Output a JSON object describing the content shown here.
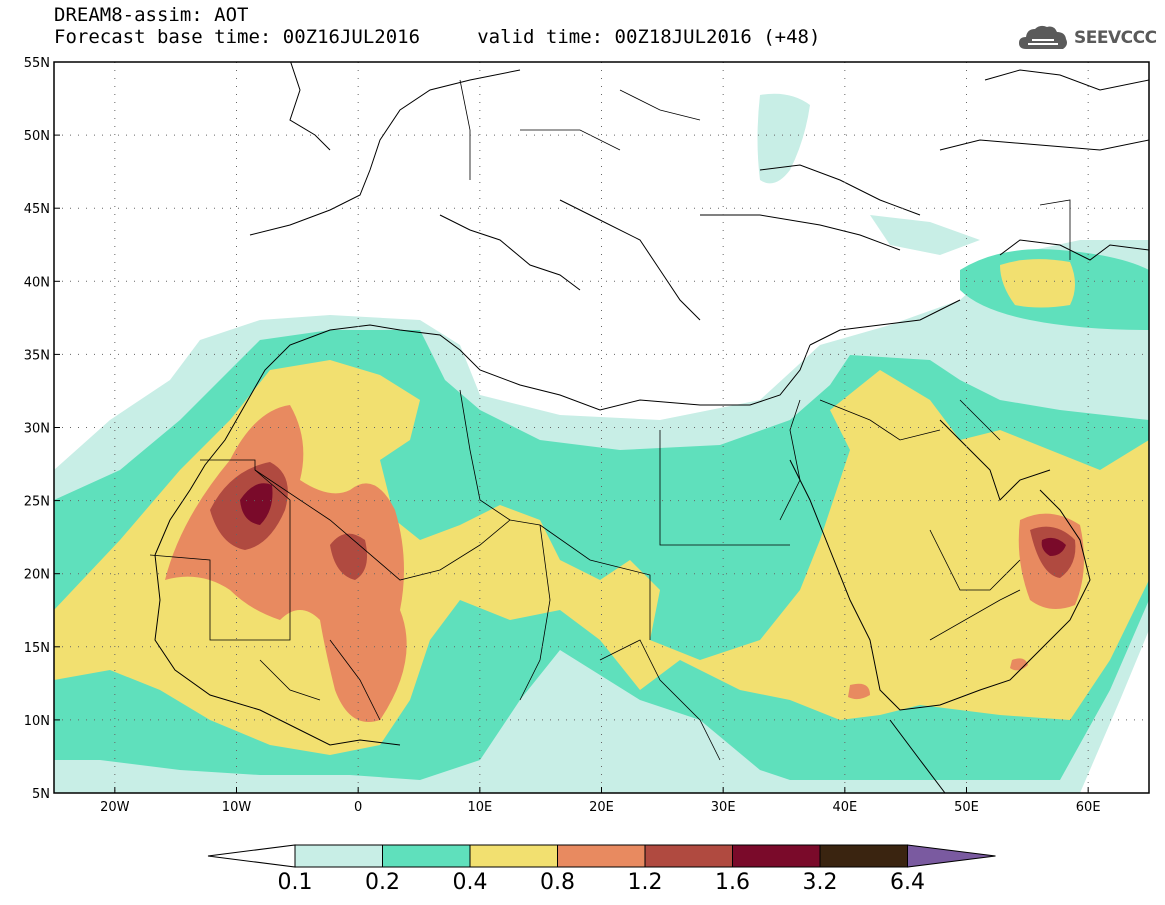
{
  "header": {
    "title_line1": "DREAM8-assim: AOT",
    "title_line2": "Forecast base time: 00Z16JUL2016     valid time: 00Z18JUL2016 (+48)"
  },
  "logo": {
    "text": "SEEVCCC",
    "icon": "cloud-icon"
  },
  "map": {
    "lon_labels": [
      "20W",
      "10W",
      "0",
      "10E",
      "20E",
      "30E",
      "40E",
      "50E",
      "60E"
    ],
    "lat_labels": [
      "55N",
      "50N",
      "45N",
      "40N",
      "35N",
      "30N",
      "25N",
      "20N",
      "15N",
      "10N",
      "5N"
    ],
    "lon_range": [
      -25,
      65
    ],
    "lat_range": [
      5,
      55
    ],
    "grid": "dotted",
    "variable": "AOT"
  },
  "colorbar": {
    "levels": [
      "0.1",
      "0.2",
      "0.4",
      "0.8",
      "1.2",
      "1.6",
      "3.2",
      "6.4"
    ],
    "colors": [
      "#ffffff",
      "#c8eee6",
      "#5fe0bc",
      "#f2e070",
      "#e88a60",
      "#b04a40",
      "#7a0a2a",
      "#3a2410",
      "#7a5aa0"
    ]
  },
  "aot_colors": {
    "c02": "#c8eee6",
    "c04": "#5fe0bc",
    "c08": "#f2e070",
    "c12": "#e88a60",
    "c16": "#b04a40",
    "c32": "#7a0a2a"
  }
}
